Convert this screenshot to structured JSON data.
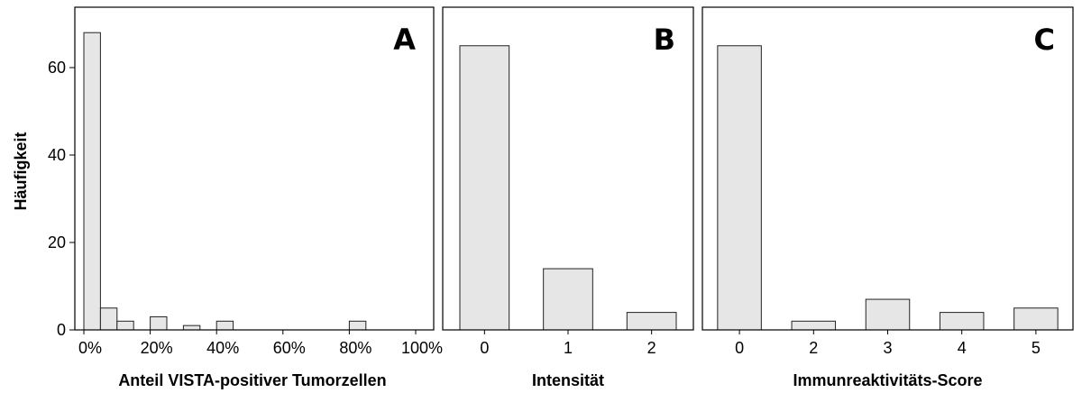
{
  "ylabel": "Häufigkeit",
  "y_ticks": [
    "0",
    "20",
    "40",
    "60"
  ],
  "chart_data": [
    {
      "panel": "A",
      "type": "bar",
      "xlabel": "Anteil VISTA-positiver Tumorzellen",
      "x_ticks": [
        "0%",
        "20%",
        "40%",
        "60%",
        "80%",
        "100%"
      ],
      "ylabel": "Häufigkeit",
      "xlim": [
        0,
        100
      ],
      "ylim": [
        0,
        72
      ],
      "bin_width": 5,
      "bins": [
        {
          "x": 0,
          "count": 68
        },
        {
          "x": 5,
          "count": 5
        },
        {
          "x": 10,
          "count": 2
        },
        {
          "x": 20,
          "count": 3
        },
        {
          "x": 30,
          "count": 1
        },
        {
          "x": 40,
          "count": 2
        },
        {
          "x": 80,
          "count": 2
        }
      ],
      "bar_fill": "#e6e6e6"
    },
    {
      "panel": "B",
      "type": "bar",
      "xlabel": "Intensität",
      "categories": [
        "0",
        "1",
        "2"
      ],
      "values": [
        65,
        14,
        4
      ],
      "ylim": [
        0,
        72
      ],
      "bar_fill": "#e6e6e6"
    },
    {
      "panel": "C",
      "type": "bar",
      "xlabel": "Immunreaktivitäts-Score",
      "categories": [
        "0",
        "2",
        "3",
        "4",
        "5"
      ],
      "values": [
        65,
        2,
        7,
        4,
        5
      ],
      "ylim": [
        0,
        72
      ],
      "bar_fill": "#e6e6e6"
    }
  ]
}
